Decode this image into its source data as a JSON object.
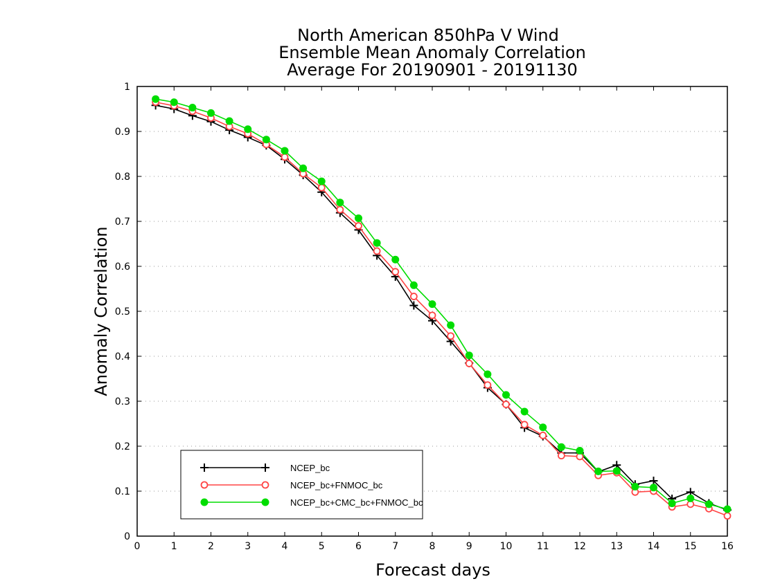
{
  "chart_data": {
    "type": "line",
    "title": [
      "North American 850hPa V Wind",
      "Ensemble Mean Anomaly Correlation",
      "Average For 20190901 - 20191130"
    ],
    "xlabel": "Forecast days",
    "ylabel": "Anomaly Correlation",
    "xlim": [
      0,
      16
    ],
    "ylim": [
      0,
      1
    ],
    "xticks": [
      "0",
      "1",
      "2",
      "3",
      "4",
      "5",
      "6",
      "7",
      "8",
      "9",
      "10",
      "11",
      "12",
      "13",
      "14",
      "15",
      "16"
    ],
    "yticks": [
      "0",
      "0.1",
      "0.2",
      "0.3",
      "0.4",
      "0.5",
      "0.6",
      "0.7",
      "0.8",
      "0.9",
      "1"
    ],
    "grid": "horizontal dotted",
    "legend_position": "bottom-left",
    "x": [
      0.5,
      1,
      1.5,
      2,
      2.5,
      3,
      3.5,
      4,
      4.5,
      5,
      5.5,
      6,
      6.5,
      7,
      7.5,
      8,
      8.5,
      9,
      9.5,
      10,
      10.5,
      11,
      11.5,
      12,
      12.5,
      13,
      13.5,
      14,
      14.5,
      15,
      15.5,
      16
    ],
    "series": [
      {
        "name": "NCEP_bc",
        "color": "#000000",
        "marker": "plus",
        "values": [
          0.958,
          0.95,
          0.935,
          0.922,
          0.903,
          0.887,
          0.869,
          0.838,
          0.803,
          0.765,
          0.719,
          0.681,
          0.624,
          0.577,
          0.513,
          0.479,
          0.433,
          0.385,
          0.33,
          0.293,
          0.241,
          0.222,
          0.185,
          0.185,
          0.143,
          0.158,
          0.115,
          0.123,
          0.083,
          0.098,
          0.073,
          0.058
        ]
      },
      {
        "name": "NCEP_bc+FNMOC_bc",
        "color": "#ff4444",
        "marker": "open-circle",
        "values": [
          0.965,
          0.957,
          0.945,
          0.93,
          0.911,
          0.895,
          0.871,
          0.843,
          0.806,
          0.775,
          0.726,
          0.69,
          0.634,
          0.588,
          0.533,
          0.491,
          0.445,
          0.384,
          0.336,
          0.293,
          0.248,
          0.224,
          0.179,
          0.177,
          0.135,
          0.141,
          0.098,
          0.1,
          0.065,
          0.071,
          0.061,
          0.045
        ]
      },
      {
        "name": "NCEP_bc+CMC_bc+FNMOC_bc",
        "color": "#00dd00",
        "marker": "filled-circle",
        "values": [
          0.972,
          0.965,
          0.953,
          0.941,
          0.923,
          0.905,
          0.882,
          0.857,
          0.818,
          0.789,
          0.742,
          0.707,
          0.652,
          0.615,
          0.558,
          0.516,
          0.469,
          0.402,
          0.36,
          0.314,
          0.277,
          0.242,
          0.198,
          0.19,
          0.144,
          0.145,
          0.11,
          0.108,
          0.073,
          0.084,
          0.071,
          0.06
        ]
      }
    ]
  }
}
